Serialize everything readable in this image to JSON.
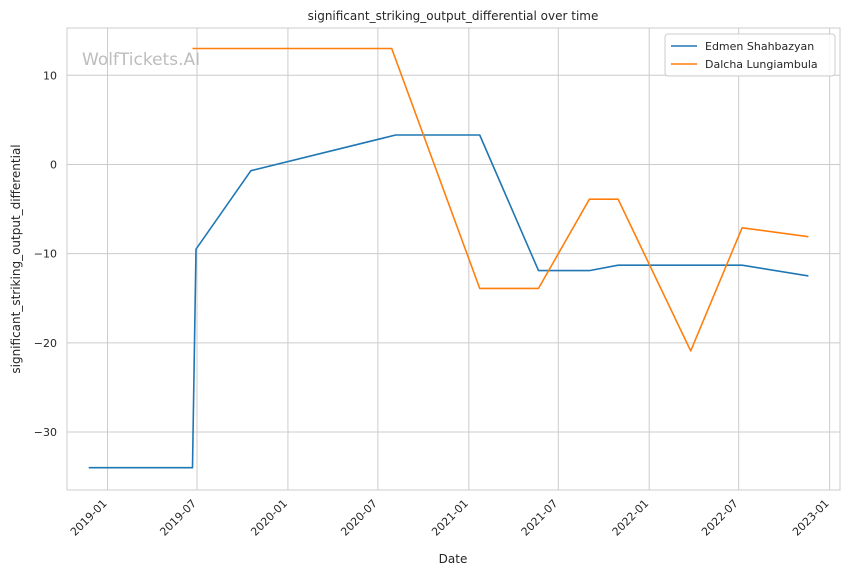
{
  "chart_data": {
    "type": "line",
    "title": "significant_striking_output_differential over time",
    "xlabel": "Date",
    "ylabel": "significant_striking_output_differential",
    "watermark": "WolfTickets.AI",
    "x_ticks": [
      "2019-01",
      "2019-07",
      "2020-01",
      "2020-07",
      "2021-01",
      "2021-07",
      "2022-01",
      "2022-07",
      "2023-01"
    ],
    "y_ticks": [
      10,
      0,
      -10,
      -20,
      -30
    ],
    "y_tick_labels": [
      "10",
      "0",
      "−10",
      "−20",
      "−30"
    ],
    "xlim": [
      "2018-10-11",
      "2023-01-22"
    ],
    "ylim": [
      -36.5,
      15.3
    ],
    "grid": true,
    "legend_position": "top-right",
    "series": [
      {
        "name": "Edmen Shahbazyan",
        "color": "#1f77b4",
        "points": [
          {
            "x": "2018-11-24",
            "y": -34.0
          },
          {
            "x": "2019-06-22",
            "y": -34.0
          },
          {
            "x": "2019-06-29",
            "y": -9.5
          },
          {
            "x": "2019-10-18",
            "y": -0.7
          },
          {
            "x": "2020-08-06",
            "y": 3.3
          },
          {
            "x": "2021-01-23",
            "y": 3.3
          },
          {
            "x": "2021-05-22",
            "y": -11.9
          },
          {
            "x": "2021-09-02",
            "y": -11.9
          },
          {
            "x": "2021-10-30",
            "y": -11.3
          },
          {
            "x": "2022-07-08",
            "y": -11.3
          },
          {
            "x": "2022-11-19",
            "y": -12.5
          }
        ]
      },
      {
        "name": "Dalcha Lungiambula",
        "color": "#ff7f0e",
        "points": [
          {
            "x": "2019-06-22",
            "y": 13.0
          },
          {
            "x": "2020-07-29",
            "y": 13.0
          },
          {
            "x": "2021-01-23",
            "y": -13.9
          },
          {
            "x": "2021-05-22",
            "y": -13.9
          },
          {
            "x": "2021-09-02",
            "y": -3.9
          },
          {
            "x": "2021-10-30",
            "y": -3.9
          },
          {
            "x": "2022-03-26",
            "y": -20.9
          },
          {
            "x": "2022-07-08",
            "y": -7.1
          },
          {
            "x": "2022-11-19",
            "y": -8.1
          }
        ]
      }
    ]
  }
}
